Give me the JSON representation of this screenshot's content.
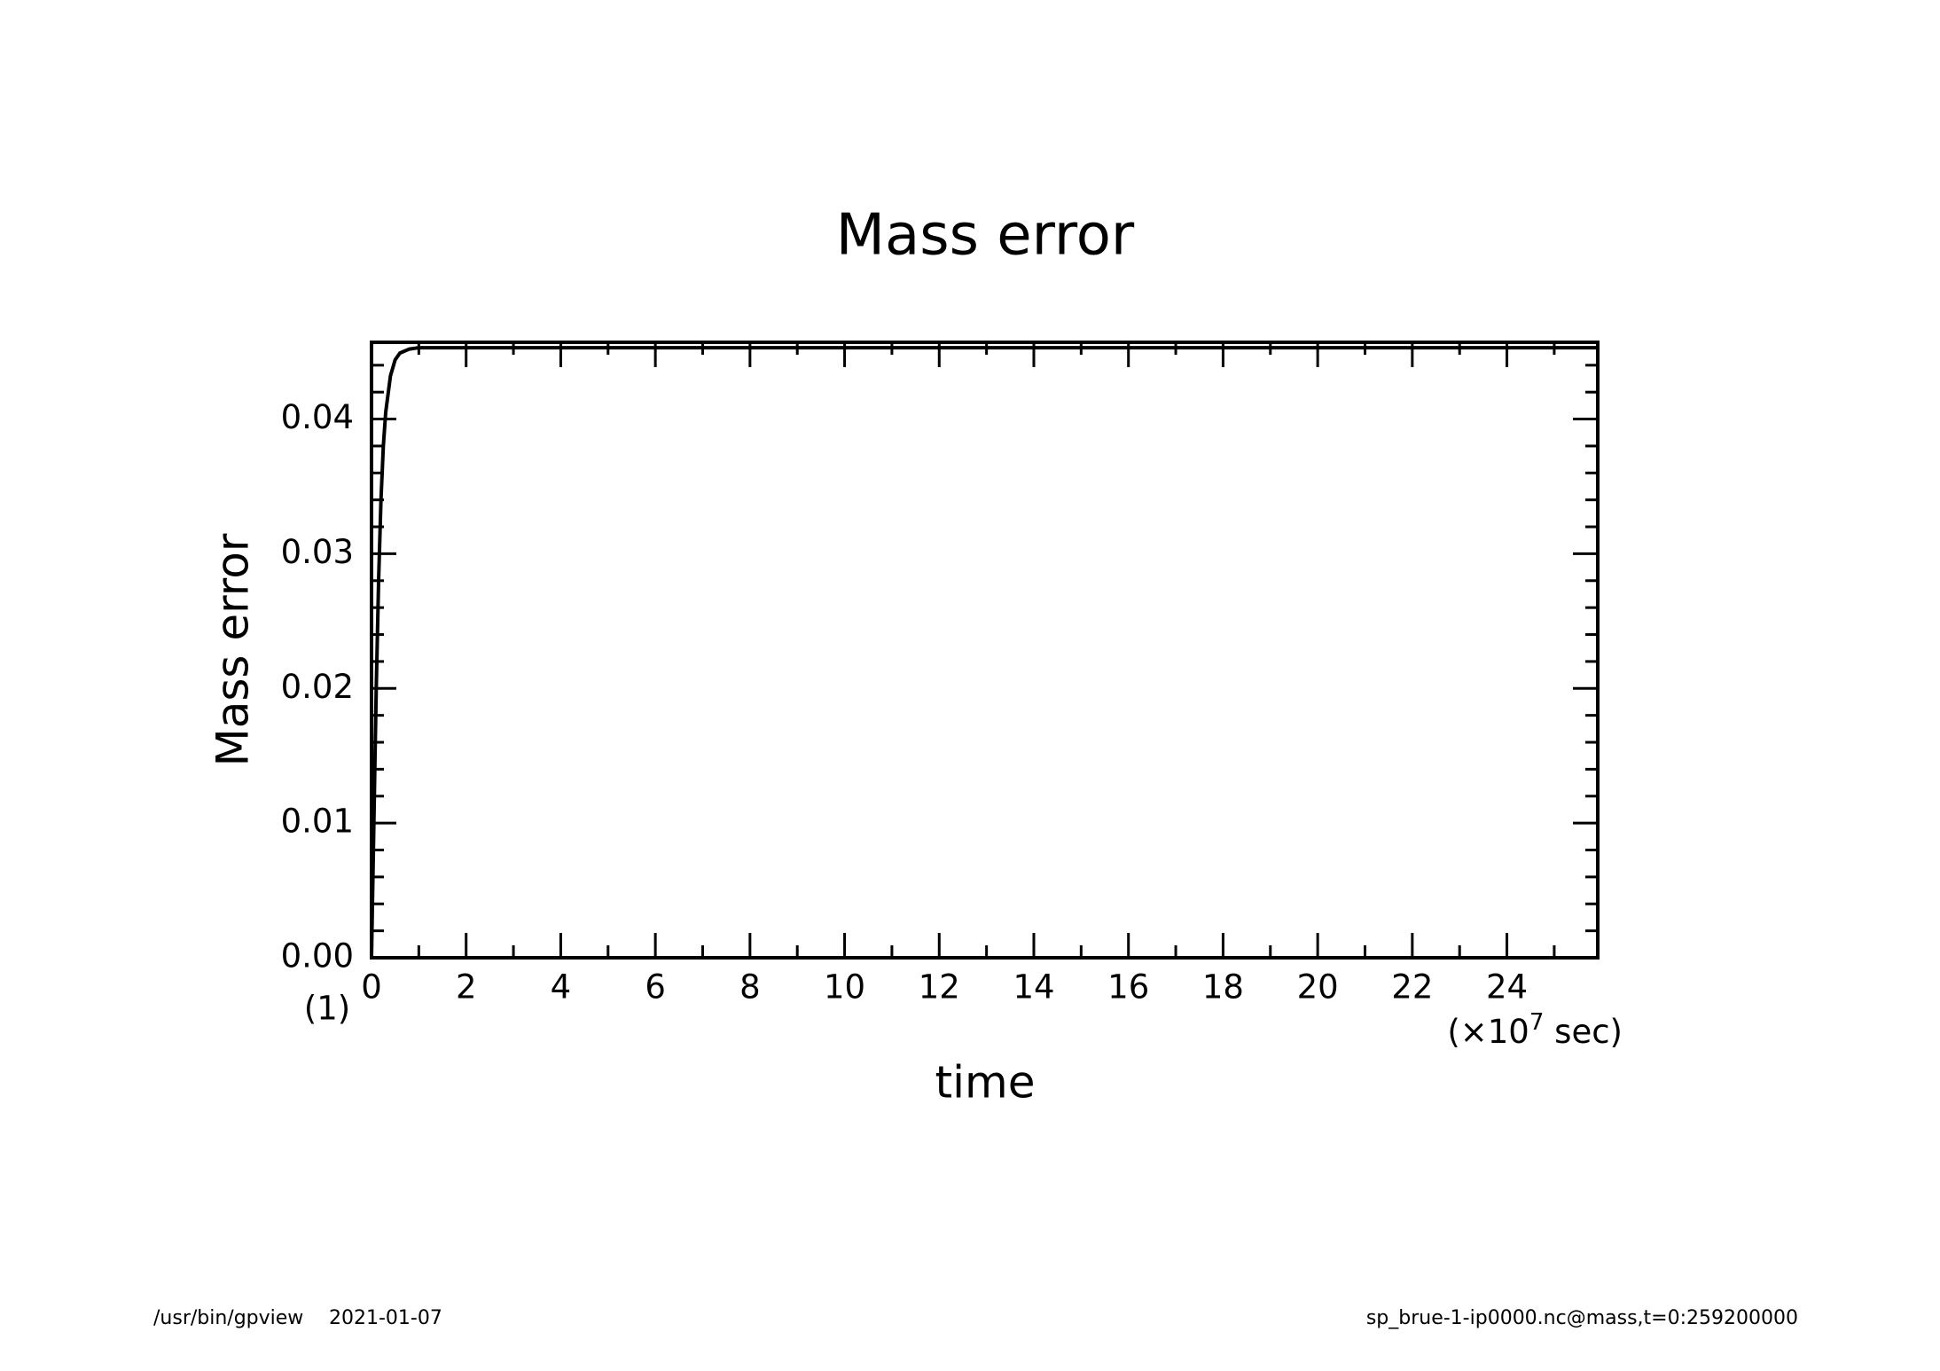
{
  "chart_data": {
    "type": "line",
    "title": "Mass error",
    "xlabel": "time",
    "ylabel": "Mass error",
    "x_unit": {
      "prefix": "(×10",
      "exponent": "7",
      "suffix": " sec)"
    },
    "frame_label": "(1)",
    "x": [
      0,
      0.03,
      0.06,
      0.1,
      0.15,
      0.2,
      0.25,
      0.3,
      0.4,
      0.5,
      0.6,
      0.8,
      1.0,
      2,
      5,
      10,
      15,
      20,
      25.92
    ],
    "series": [
      {
        "name": "Mass error",
        "color": "#000000",
        "values": [
          0,
          0.006,
          0.012,
          0.02,
          0.028,
          0.034,
          0.038,
          0.0405,
          0.0432,
          0.0444,
          0.0449,
          0.0452,
          0.0453,
          0.0453,
          0.0453,
          0.0453,
          0.0453,
          0.0453,
          0.0453
        ]
      }
    ],
    "xlim": [
      0,
      25.92
    ],
    "ylim": [
      0,
      0.0457
    ],
    "xticks": [
      0,
      2,
      4,
      6,
      8,
      10,
      12,
      14,
      16,
      18,
      20,
      22,
      24
    ],
    "xminorticks": [
      1,
      3,
      5,
      7,
      9,
      11,
      13,
      15,
      17,
      19,
      21,
      23,
      25
    ],
    "yticks": [
      {
        "value": 0,
        "label": "0.00"
      },
      {
        "value": 0.01,
        "label": "0.01"
      },
      {
        "value": 0.02,
        "label": "0.02"
      },
      {
        "value": 0.03,
        "label": "0.03"
      },
      {
        "value": 0.04,
        "label": "0.04"
      }
    ],
    "yminorticks": [
      0.002,
      0.004,
      0.006,
      0.008,
      0.012,
      0.014,
      0.016,
      0.018,
      0.022,
      0.024,
      0.026,
      0.028,
      0.032,
      0.034,
      0.036,
      0.038,
      0.042,
      0.044
    ],
    "grid": false,
    "footer": {
      "program": "/usr/bin/gpview",
      "date": "2021-01-07",
      "source": "sp_brue-1-ip0000.nc@mass,t=0:259200000"
    }
  }
}
